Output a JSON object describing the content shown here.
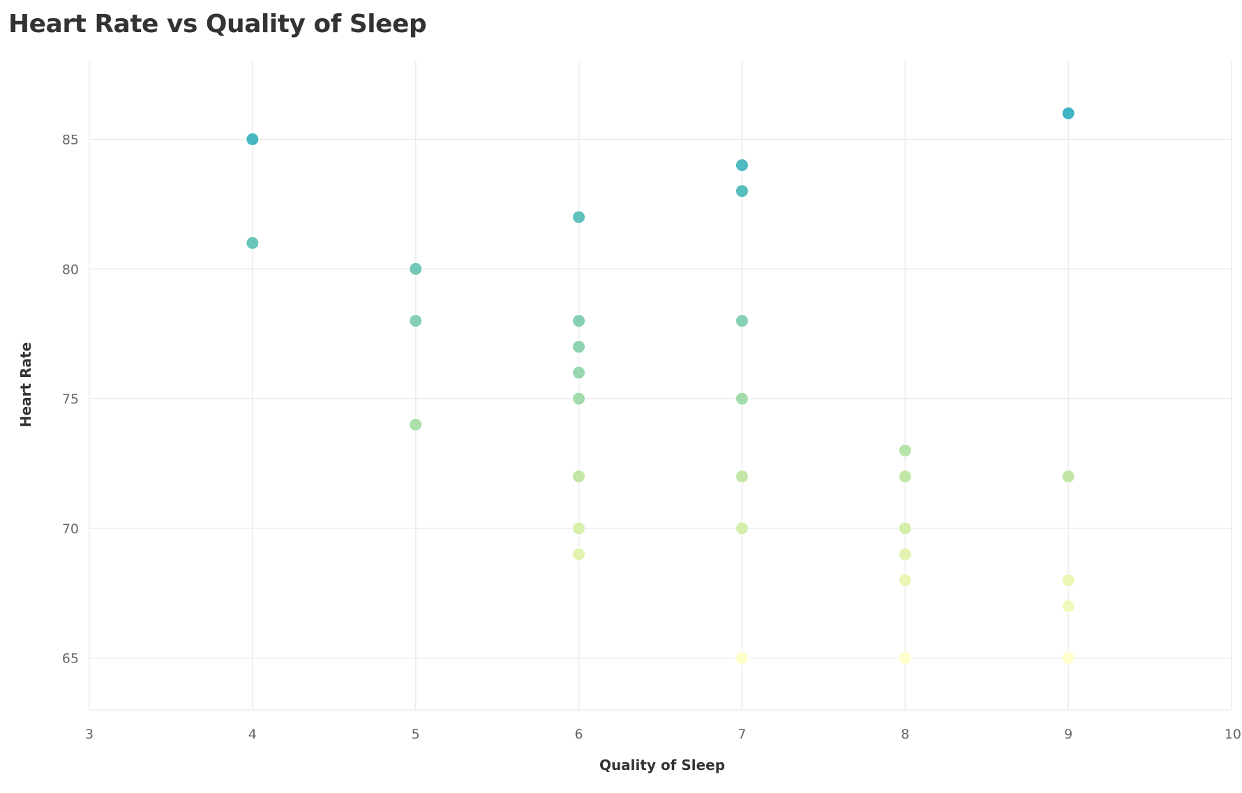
{
  "chart_data": {
    "type": "scatter",
    "title": "Heart Rate vs Quality of Sleep",
    "xlabel": "Quality of Sleep",
    "ylabel": "Heart Rate",
    "xlim": [
      3,
      10
    ],
    "ylim": [
      63,
      88
    ],
    "xticks": [
      "3",
      "4",
      "5",
      "6",
      "7",
      "8",
      "9",
      "10"
    ],
    "yticks": [
      "65",
      "70",
      "75",
      "80",
      "85"
    ],
    "grid": true,
    "color_scale": [
      "#ffffcc",
      "#e6f5b0",
      "#c2e6a6",
      "#9dd9ad",
      "#7ccbb4",
      "#5bbfbd",
      "#3fb4c6"
    ],
    "points": [
      {
        "x": 4,
        "y": 85
      },
      {
        "x": 4,
        "y": 81
      },
      {
        "x": 5,
        "y": 80
      },
      {
        "x": 5,
        "y": 78
      },
      {
        "x": 5,
        "y": 74
      },
      {
        "x": 6,
        "y": 82
      },
      {
        "x": 6,
        "y": 78
      },
      {
        "x": 6,
        "y": 77
      },
      {
        "x": 6,
        "y": 76
      },
      {
        "x": 6,
        "y": 75
      },
      {
        "x": 6,
        "y": 72
      },
      {
        "x": 6,
        "y": 70
      },
      {
        "x": 6,
        "y": 69
      },
      {
        "x": 7,
        "y": 84
      },
      {
        "x": 7,
        "y": 83
      },
      {
        "x": 7,
        "y": 78
      },
      {
        "x": 7,
        "y": 75
      },
      {
        "x": 7,
        "y": 72
      },
      {
        "x": 7,
        "y": 70
      },
      {
        "x": 7,
        "y": 65
      },
      {
        "x": 8,
        "y": 73
      },
      {
        "x": 8,
        "y": 72
      },
      {
        "x": 8,
        "y": 70
      },
      {
        "x": 8,
        "y": 69
      },
      {
        "x": 8,
        "y": 68
      },
      {
        "x": 8,
        "y": 65
      },
      {
        "x": 9,
        "y": 86
      },
      {
        "x": 9,
        "y": 72
      },
      {
        "x": 9,
        "y": 68
      },
      {
        "x": 9,
        "y": 67
      },
      {
        "x": 9,
        "y": 65
      }
    ]
  }
}
